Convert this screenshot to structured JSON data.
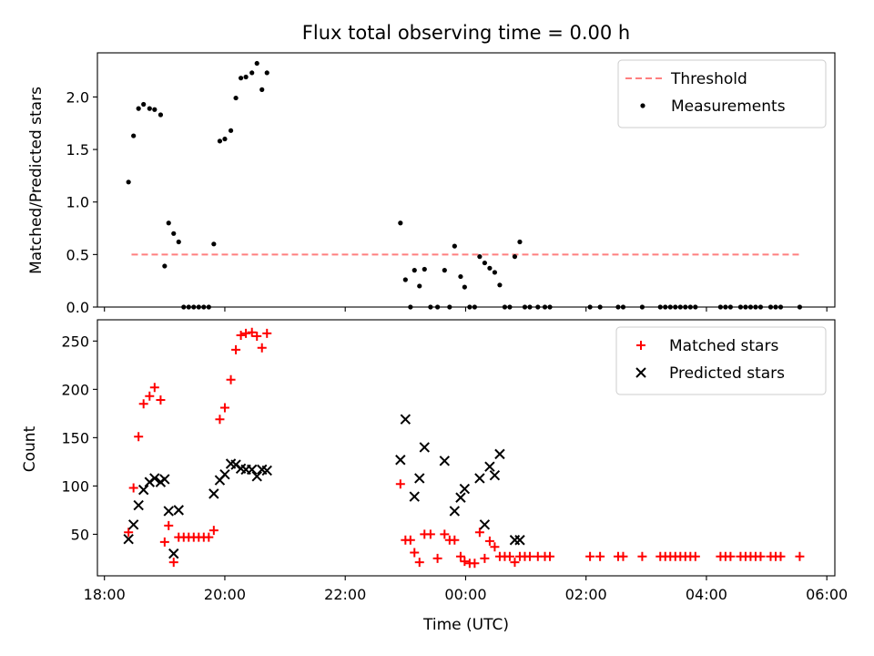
{
  "chart_data": [
    {
      "type": "scatter",
      "title": "Flux total observing time = 0.00 h",
      "xlabel": "",
      "ylabel": "Matched/Predicted stars",
      "xlim": [
        "17:53",
        "06:08"
      ],
      "ylim": [
        0,
        2.42
      ],
      "y_ticks": [
        0.0,
        0.5,
        1.0,
        1.5,
        2.0
      ],
      "x_ticks": [
        "18:00",
        "20:00",
        "22:00",
        "00:00",
        "02:00",
        "04:00",
        "06:00"
      ],
      "x_tick_labels": [],
      "legend_position": "top-right",
      "grid": false,
      "threshold": {
        "name": "Threshold",
        "y": 0.5,
        "x_start": "18:27",
        "x_end": "05:33",
        "color": "#ff7f7f"
      },
      "series": [
        {
          "name": "Measurements",
          "color": "#000000",
          "marker": "dot",
          "points": [
            [
              "18:24",
              1.19
            ],
            [
              "18:29",
              1.63
            ],
            [
              "18:34",
              1.89
            ],
            [
              "18:39",
              1.93
            ],
            [
              "18:45",
              1.89
            ],
            [
              "18:50",
              1.88
            ],
            [
              "18:56",
              1.83
            ],
            [
              "19:00",
              0.39
            ],
            [
              "19:04",
              0.8
            ],
            [
              "19:09",
              0.7
            ],
            [
              "19:14",
              0.62
            ],
            [
              "19:19",
              0.0
            ],
            [
              "19:24",
              0.0
            ],
            [
              "19:29",
              0.0
            ],
            [
              "19:34",
              0.0
            ],
            [
              "19:39",
              0.0
            ],
            [
              "19:44",
              0.0
            ],
            [
              "19:49",
              0.6
            ],
            [
              "19:55",
              1.58
            ],
            [
              "20:00",
              1.6
            ],
            [
              "20:06",
              1.68
            ],
            [
              "20:11",
              1.99
            ],
            [
              "20:16",
              2.18
            ],
            [
              "20:21",
              2.19
            ],
            [
              "20:27",
              2.23
            ],
            [
              "20:32",
              2.32
            ],
            [
              "20:37",
              2.07
            ],
            [
              "20:42",
              2.23
            ],
            [
              "22:55",
              0.8
            ],
            [
              "23:00",
              0.26
            ],
            [
              "23:05",
              0.0
            ],
            [
              "23:09",
              0.35
            ],
            [
              "23:14",
              0.2
            ],
            [
              "23:19",
              0.36
            ],
            [
              "23:25",
              0.0
            ],
            [
              "23:32",
              0.0
            ],
            [
              "23:39",
              0.35
            ],
            [
              "23:44",
              0.0
            ],
            [
              "23:49",
              0.58
            ],
            [
              "23:55",
              0.29
            ],
            [
              "23:59",
              0.19
            ],
            [
              "00:04",
              0.0
            ],
            [
              "00:09",
              0.0
            ],
            [
              "00:14",
              0.48
            ],
            [
              "00:19",
              0.42
            ],
            [
              "00:24",
              0.37
            ],
            [
              "00:29",
              0.33
            ],
            [
              "00:34",
              0.21
            ],
            [
              "00:39",
              0.0
            ],
            [
              "00:44",
              0.0
            ],
            [
              "00:49",
              0.48
            ],
            [
              "00:54",
              0.62
            ],
            [
              "00:59",
              0.0
            ],
            [
              "01:04",
              0.0
            ],
            [
              "01:12",
              0.0
            ],
            [
              "01:19",
              0.0
            ],
            [
              "01:24",
              0.0
            ],
            [
              "02:04",
              0.0
            ],
            [
              "02:14",
              0.0
            ],
            [
              "02:32",
              0.0
            ],
            [
              "02:37",
              0.0
            ],
            [
              "02:56",
              0.0
            ],
            [
              "03:14",
              0.0
            ],
            [
              "03:19",
              0.0
            ],
            [
              "03:24",
              0.0
            ],
            [
              "03:29",
              0.0
            ],
            [
              "03:34",
              0.0
            ],
            [
              "03:39",
              0.0
            ],
            [
              "03:44",
              0.0
            ],
            [
              "03:49",
              0.0
            ],
            [
              "04:14",
              0.0
            ],
            [
              "04:19",
              0.0
            ],
            [
              "04:24",
              0.0
            ],
            [
              "04:34",
              0.0
            ],
            [
              "04:39",
              0.0
            ],
            [
              "04:44",
              0.0
            ],
            [
              "04:49",
              0.0
            ],
            [
              "04:54",
              0.0
            ],
            [
              "05:04",
              0.0
            ],
            [
              "05:09",
              0.0
            ],
            [
              "05:14",
              0.0
            ],
            [
              "05:33",
              0.0
            ]
          ]
        }
      ]
    },
    {
      "type": "scatter",
      "title": "",
      "xlabel": "Time (UTC)",
      "ylabel": "Count",
      "xlim": [
        "17:53",
        "06:08"
      ],
      "ylim": [
        7,
        272
      ],
      "y_ticks": [
        50,
        100,
        150,
        200,
        250
      ],
      "x_ticks": [
        "18:00",
        "20:00",
        "22:00",
        "00:00",
        "02:00",
        "04:00",
        "06:00"
      ],
      "x_tick_labels": [
        "18:00",
        "20:00",
        "22:00",
        "00:00",
        "02:00",
        "04:00",
        "06:00"
      ],
      "legend_position": "top-right",
      "grid": false,
      "series": [
        {
          "name": "Matched stars",
          "color": "#ff0000",
          "marker": "plus",
          "points": [
            [
              "18:24",
              52
            ],
            [
              "18:29",
              98
            ],
            [
              "18:34",
              151
            ],
            [
              "18:39",
              185
            ],
            [
              "18:45",
              193
            ],
            [
              "18:50",
              202
            ],
            [
              "18:56",
              189
            ],
            [
              "19:00",
              42
            ],
            [
              "19:04",
              59
            ],
            [
              "19:09",
              21
            ],
            [
              "19:14",
              47
            ],
            [
              "19:19",
              47
            ],
            [
              "19:24",
              47
            ],
            [
              "19:29",
              47
            ],
            [
              "19:34",
              47
            ],
            [
              "19:39",
              47
            ],
            [
              "19:44",
              47
            ],
            [
              "19:49",
              54
            ],
            [
              "19:55",
              169
            ],
            [
              "20:00",
              181
            ],
            [
              "20:06",
              210
            ],
            [
              "20:11",
              241
            ],
            [
              "20:16",
              256
            ],
            [
              "20:21",
              258
            ],
            [
              "20:27",
              259
            ],
            [
              "20:32",
              255
            ],
            [
              "20:37",
              243
            ],
            [
              "20:42",
              258
            ],
            [
              "22:55",
              102
            ],
            [
              "23:00",
              44
            ],
            [
              "23:05",
              44
            ],
            [
              "23:09",
              31
            ],
            [
              "23:14",
              21
            ],
            [
              "23:19",
              50
            ],
            [
              "23:25",
              50
            ],
            [
              "23:32",
              25
            ],
            [
              "23:39",
              50
            ],
            [
              "23:44",
              44
            ],
            [
              "23:49",
              44
            ],
            [
              "23:55",
              27
            ],
            [
              "23:59",
              22
            ],
            [
              "00:04",
              20
            ],
            [
              "00:09",
              20
            ],
            [
              "00:14",
              52
            ],
            [
              "00:19",
              25
            ],
            [
              "00:24",
              43
            ],
            [
              "00:29",
              37
            ],
            [
              "00:34",
              27
            ],
            [
              "00:39",
              27
            ],
            [
              "00:44",
              27
            ],
            [
              "00:49",
              21
            ],
            [
              "00:54",
              27
            ],
            [
              "00:59",
              27
            ],
            [
              "01:04",
              27
            ],
            [
              "01:12",
              27
            ],
            [
              "01:19",
              27
            ],
            [
              "01:24",
              27
            ],
            [
              "02:04",
              27
            ],
            [
              "02:14",
              27
            ],
            [
              "02:32",
              27
            ],
            [
              "02:37",
              27
            ],
            [
              "02:56",
              27
            ],
            [
              "03:14",
              27
            ],
            [
              "03:19",
              27
            ],
            [
              "03:24",
              27
            ],
            [
              "03:29",
              27
            ],
            [
              "03:34",
              27
            ],
            [
              "03:39",
              27
            ],
            [
              "03:44",
              27
            ],
            [
              "03:49",
              27
            ],
            [
              "04:14",
              27
            ],
            [
              "04:19",
              27
            ],
            [
              "04:24",
              27
            ],
            [
              "04:34",
              27
            ],
            [
              "04:39",
              27
            ],
            [
              "04:44",
              27
            ],
            [
              "04:49",
              27
            ],
            [
              "04:54",
              27
            ],
            [
              "05:04",
              27
            ],
            [
              "05:09",
              27
            ],
            [
              "05:14",
              27
            ],
            [
              "05:33",
              27
            ]
          ]
        },
        {
          "name": "Predicted stars",
          "color": "#000000",
          "marker": "x",
          "points": [
            [
              "18:24",
              45
            ],
            [
              "18:29",
              60
            ],
            [
              "18:34",
              80
            ],
            [
              "18:39",
              96
            ],
            [
              "18:45",
              104
            ],
            [
              "18:50",
              108
            ],
            [
              "18:56",
              104
            ],
            [
              "19:00",
              107
            ],
            [
              "19:04",
              74
            ],
            [
              "19:09",
              30
            ],
            [
              "19:14",
              75
            ],
            [
              "19:49",
              92
            ],
            [
              "19:55",
              106
            ],
            [
              "20:00",
              112
            ],
            [
              "20:06",
              123
            ],
            [
              "20:11",
              122
            ],
            [
              "20:16",
              118
            ],
            [
              "20:21",
              117
            ],
            [
              "20:27",
              117
            ],
            [
              "20:32",
              110
            ],
            [
              "20:37",
              117
            ],
            [
              "20:42",
              116
            ],
            [
              "22:55",
              127
            ],
            [
              "23:00",
              169
            ],
            [
              "23:09",
              89
            ],
            [
              "23:14",
              108
            ],
            [
              "23:19",
              140
            ],
            [
              "23:39",
              126
            ],
            [
              "23:49",
              74
            ],
            [
              "23:55",
              88
            ],
            [
              "23:59",
              97
            ],
            [
              "00:14",
              108
            ],
            [
              "00:19",
              60
            ],
            [
              "00:24",
              120
            ],
            [
              "00:29",
              111
            ],
            [
              "00:34",
              133
            ],
            [
              "00:49",
              44
            ],
            [
              "00:54",
              44
            ]
          ]
        }
      ]
    }
  ]
}
